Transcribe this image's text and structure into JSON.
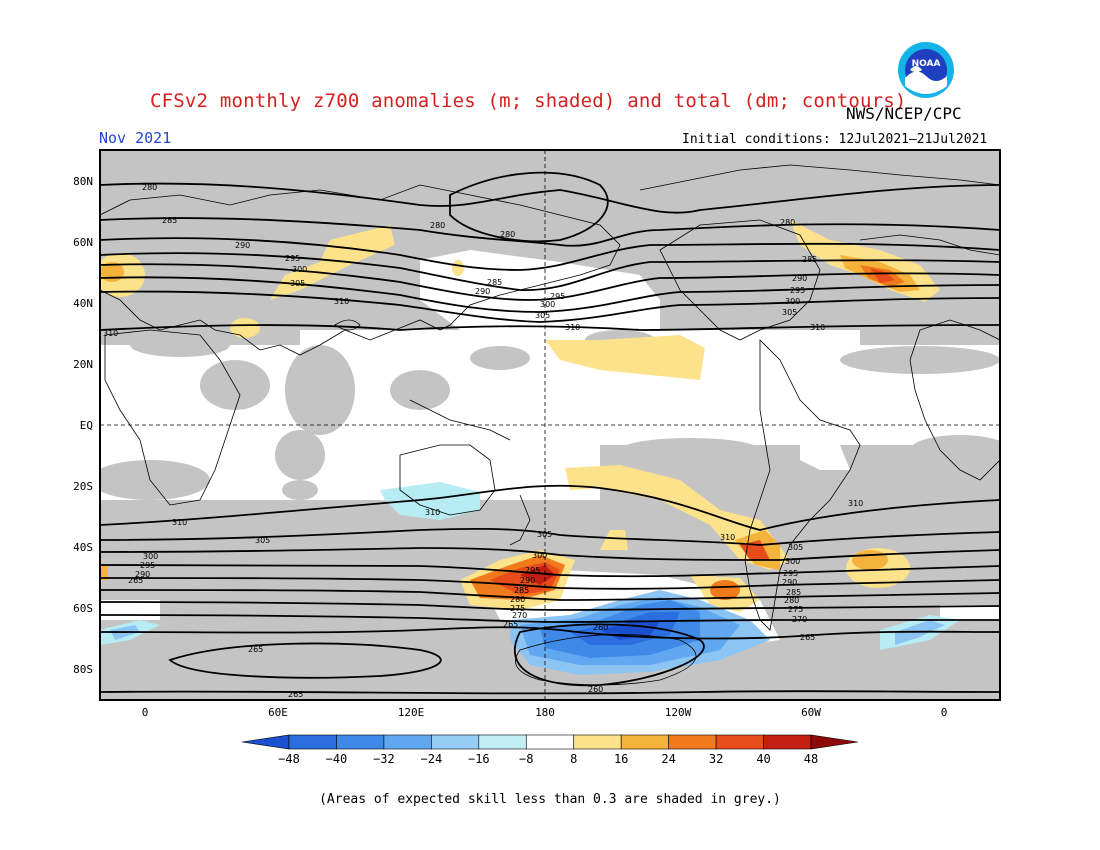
{
  "header": {
    "title": "CFSv2 monthly z700 anomalies (m; shaded) and total (dm; contours)",
    "agency": "NWS/NCEP/CPC",
    "month": "Nov 2021",
    "initial_conditions": "Initial conditions: 12Jul2021–21Jul2021",
    "logo_text": "NOAA"
  },
  "map": {
    "lat_labels": [
      "80N",
      "60N",
      "40N",
      "20N",
      "EQ",
      "20S",
      "40S",
      "60S",
      "80S"
    ],
    "lon_labels": [
      "0",
      "60E",
      "120E",
      "180",
      "120W",
      "60W",
      "0"
    ],
    "colors": {
      "skill_grey": "#c4c4c4",
      "land_outline": "#000000",
      "anom_pos_8_16": "#fce28a",
      "anom_pos_16_24": "#f6b33c",
      "anom_pos_24_32": "#f07a1c",
      "anom_pos_32_40": "#e84c1a",
      "anom_pos_40_48": "#c41d12",
      "anom_neg_8_16": "#b8ecf4",
      "anom_neg_16_24": "#8cc4f4",
      "anom_neg_24_32": "#5aa0ec",
      "anom_neg_32_40": "#3278e6",
      "anom_neg_40_48": "#1a58d6"
    },
    "contour_labels": {
      "nh": [
        "280",
        "285",
        "290",
        "295",
        "300",
        "305",
        "310"
      ],
      "sh": [
        "310",
        "305",
        "300",
        "295",
        "290",
        "285",
        "280",
        "275",
        "270",
        "265",
        "260"
      ]
    }
  },
  "colorbar": {
    "ticks": [
      "−48",
      "−40",
      "−32",
      "−24",
      "−16",
      "−8",
      "8",
      "16",
      "24",
      "32",
      "40",
      "48"
    ],
    "colors": [
      "#1a4fd0",
      "#2a6ee0",
      "#3f8ae8",
      "#62a8f0",
      "#96cdf6",
      "#c2eef6",
      "#ffffff",
      "#fce28a",
      "#f6b33c",
      "#f07a1c",
      "#e84c1a",
      "#c41d12",
      "#8e0a0a"
    ]
  },
  "footnote": "(Areas of expected skill less than 0.3 are shaded in grey.)"
}
